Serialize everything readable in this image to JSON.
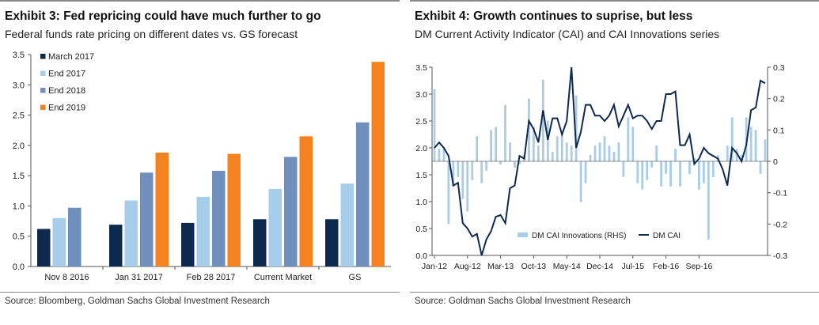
{
  "charts": [
    {
      "title": "Exhibit 3: Fed repricing could have much further to go",
      "subtitle": "Federal funds rate pricing on different dates vs. GS forecast",
      "source": "Source: Bloomberg, Goldman Sachs Global Investment Research"
    },
    {
      "title": "Exhibit 4: Growth continues to suprise, but less",
      "subtitle": "DM Current Activity Indicator (CAI) and CAI Innovations series",
      "source": "Source: Goldman Sachs Global Investment Research"
    }
  ],
  "chart_data": [
    {
      "type": "bar",
      "categories": [
        "Nov 8 2016",
        "Jan 31 2017",
        "Feb 28 2017",
        "Current Market",
        "GS"
      ],
      "series": [
        {
          "name": "March 2017",
          "color": "#0d2a4e",
          "values": [
            0.62,
            0.69,
            0.72,
            0.78,
            0.78
          ]
        },
        {
          "name": "End 2017",
          "color": "#a6cde9",
          "values": [
            0.8,
            1.09,
            1.15,
            1.28,
            1.37
          ]
        },
        {
          "name": "End 2018",
          "color": "#6f8fbd",
          "values": [
            0.97,
            1.55,
            1.58,
            1.81,
            2.38
          ]
        },
        {
          "name": "End 2019",
          "color": "#f5821f",
          "values": [
            null,
            1.88,
            1.86,
            2.15,
            3.38
          ]
        }
      ],
      "ylim": [
        0,
        3.5
      ],
      "yticks": [
        "0.0",
        "0.5",
        "1.0",
        "1.5",
        "2.0",
        "2.5",
        "3.0",
        "3.5"
      ],
      "legend_position": "top-left",
      "grid": false
    },
    {
      "type": "bar+line",
      "x_labels": [
        "Jan-12",
        "Aug-12",
        "Mar-13",
        "Oct-13",
        "May-14",
        "Dec-14",
        "Jul-15",
        "Feb-16",
        "Sep-16"
      ],
      "x_start": "2012-01",
      "series": [
        {
          "name": "DM CAI Innovations (RHS)",
          "type": "bar",
          "axis": "right",
          "color": "#a9cde6",
          "values": [
            0.23,
            0.04,
            0.04,
            -0.2,
            -0.08,
            -0.05,
            -0.12,
            -0.16,
            -0.06,
            0.08,
            -0.07,
            -0.03,
            0.1,
            0.11,
            -0.01,
            0.18,
            0.06,
            -0.02,
            -0.01,
            0.02,
            0.2,
            0.11,
            0.05,
            0.26,
            0.13,
            0.03,
            0.08,
            0.09,
            0.06,
            0.05,
            0.21,
            -0.13,
            -0.07,
            0.02,
            0.05,
            0.06,
            0.08,
            0.05,
            0.03,
            0.06,
            -0.05,
            0.14,
            0.11,
            -0.07,
            -0.09,
            -0.06,
            -0.02,
            0.05,
            -0.08,
            -0.04,
            -0.08,
            0.04,
            -0.08,
            0.0,
            -0.04,
            0.01,
            -0.09,
            -0.07,
            -0.25,
            -0.05,
            0.02,
            0.0,
            0.05,
            0.14,
            0.04,
            0.02,
            0.14,
            0.11,
            0.1,
            -0.04,
            0.07
          ]
        },
        {
          "name": "DM CAI",
          "type": "line",
          "axis": "left",
          "color": "#0d2a4e",
          "values": [
            2.0,
            2.1,
            2.0,
            1.85,
            1.3,
            1.35,
            0.6,
            0.5,
            0.35,
            0.4,
            0.0,
            0.3,
            0.45,
            0.72,
            0.75,
            0.6,
            1.25,
            1.3,
            1.85,
            1.8,
            2.5,
            2.35,
            2.1,
            2.7,
            2.15,
            2.55,
            2.55,
            2.25,
            2.5,
            3.5,
            2.0,
            2.3,
            2.8,
            2.8,
            2.6,
            2.6,
            2.5,
            2.6,
            2.8,
            2.4,
            2.6,
            2.8,
            2.55,
            2.6,
            2.6,
            2.5,
            2.35,
            2.5,
            2.5,
            3.0,
            3.0,
            3.05,
            2.05,
            2.05,
            2.25,
            1.7,
            1.8,
            2.0,
            1.9,
            1.85,
            1.8,
            1.6,
            1.3,
            2.0,
            1.9,
            1.75,
            2.05,
            2.7,
            2.75,
            3.25,
            3.2
          ]
        }
      ],
      "ylim_left": [
        0,
        3.5
      ],
      "yticks_left": [
        "0.0",
        "0.5",
        "1.0",
        "1.5",
        "2.0",
        "2.5",
        "3.0",
        "3.5"
      ],
      "ylim_right": [
        -0.3,
        0.3
      ],
      "yticks_right": [
        "-0.3",
        "-0.2",
        "-0.1",
        "0",
        "0.1",
        "0.2",
        "0.3"
      ],
      "legend_position": "bottom-right",
      "grid": false
    }
  ]
}
